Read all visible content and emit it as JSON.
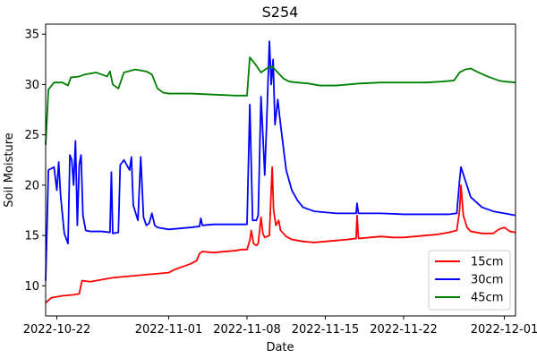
{
  "chart_data": {
    "type": "line",
    "title": "S254",
    "xlabel": "Date",
    "ylabel": "Soil Moisture",
    "xlim": [
      "2022-10-21",
      "2022-12-02"
    ],
    "ylim": [
      7,
      36
    ],
    "x_ticks": [
      "2022-10-22",
      "2022-11-01",
      "2022-11-08",
      "2022-11-15",
      "2022-11-22",
      "2022-12-01"
    ],
    "y_ticks": [
      10,
      15,
      20,
      25,
      30,
      35
    ],
    "legend_position": "lower-right",
    "grid": false,
    "series": [
      {
        "name": "15cm",
        "color": "#ff0000",
        "points": [
          [
            "2022-10-21 00:00",
            8.3
          ],
          [
            "2022-10-21 12:00",
            8.8
          ],
          [
            "2022-10-22 12:00",
            9.0
          ],
          [
            "2022-10-23 12:00",
            9.1
          ],
          [
            "2022-10-24 00:00",
            9.2
          ],
          [
            "2022-10-24 06:00",
            10.5
          ],
          [
            "2022-10-25 00:00",
            10.4
          ],
          [
            "2022-10-26 00:00",
            10.6
          ],
          [
            "2022-10-27 00:00",
            10.8
          ],
          [
            "2022-10-28 00:00",
            10.9
          ],
          [
            "2022-10-29 00:00",
            11.0
          ],
          [
            "2022-10-30 00:00",
            11.1
          ],
          [
            "2022-10-31 00:00",
            11.2
          ],
          [
            "2022-11-01 00:00",
            11.3
          ],
          [
            "2022-11-01 12:00",
            11.6
          ],
          [
            "2022-11-02 00:00",
            11.8
          ],
          [
            "2022-11-02 12:00",
            12.0
          ],
          [
            "2022-11-03 00:00",
            12.2
          ],
          [
            "2022-11-03 12:00",
            12.5
          ],
          [
            "2022-11-03 18:00",
            13.2
          ],
          [
            "2022-11-04 00:00",
            13.4
          ],
          [
            "2022-11-05 00:00",
            13.3
          ],
          [
            "2022-11-06 00:00",
            13.4
          ],
          [
            "2022-11-07 00:00",
            13.5
          ],
          [
            "2022-11-07 12:00",
            13.6
          ],
          [
            "2022-11-08 00:00",
            13.6
          ],
          [
            "2022-11-08 06:00",
            14.5
          ],
          [
            "2022-11-08 09:00",
            15.5
          ],
          [
            "2022-11-08 14:00",
            14.2
          ],
          [
            "2022-11-08 20:00",
            14.0
          ],
          [
            "2022-11-09 00:00",
            14.2
          ],
          [
            "2022-11-09 06:00",
            16.8
          ],
          [
            "2022-11-09 10:00",
            15.2
          ],
          [
            "2022-11-09 14:00",
            14.8
          ],
          [
            "2022-11-10 00:00",
            15.0
          ],
          [
            "2022-11-10 03:00",
            18.5
          ],
          [
            "2022-11-10 06:00",
            21.8
          ],
          [
            "2022-11-10 09:00",
            17.5
          ],
          [
            "2022-11-10 14:00",
            16.0
          ],
          [
            "2022-11-10 20:00",
            16.5
          ],
          [
            "2022-11-11 00:00",
            15.5
          ],
          [
            "2022-11-11 12:00",
            14.9
          ],
          [
            "2022-11-12 00:00",
            14.6
          ],
          [
            "2022-11-13 00:00",
            14.4
          ],
          [
            "2022-11-14 00:00",
            14.3
          ],
          [
            "2022-11-15 00:00",
            14.4
          ],
          [
            "2022-11-16 00:00",
            14.5
          ],
          [
            "2022-11-17 00:00",
            14.6
          ],
          [
            "2022-11-17 18:00",
            14.7
          ],
          [
            "2022-11-17 20:00",
            17.0
          ],
          [
            "2022-11-17 23:00",
            14.8
          ],
          [
            "2022-11-18 00:00",
            14.7
          ],
          [
            "2022-11-19 00:00",
            14.8
          ],
          [
            "2022-11-20 00:00",
            14.9
          ],
          [
            "2022-11-21 00:00",
            14.8
          ],
          [
            "2022-11-22 00:00",
            14.8
          ],
          [
            "2022-11-23 00:00",
            14.9
          ],
          [
            "2022-11-24 00:00",
            15.0
          ],
          [
            "2022-11-25 00:00",
            15.1
          ],
          [
            "2022-11-26 00:00",
            15.3
          ],
          [
            "2022-11-26 18:00",
            15.5
          ],
          [
            "2022-11-27 00:00",
            17.5
          ],
          [
            "2022-11-27 03:00",
            20.0
          ],
          [
            "2022-11-27 08:00",
            17.0
          ],
          [
            "2022-11-27 16:00",
            15.8
          ],
          [
            "2022-11-28 00:00",
            15.4
          ],
          [
            "2022-11-29 00:00",
            15.2
          ],
          [
            "2022-11-30 00:00",
            15.2
          ],
          [
            "2022-11-30 12:00",
            15.6
          ],
          [
            "2022-12-01 00:00",
            15.8
          ],
          [
            "2022-12-01 12:00",
            15.4
          ],
          [
            "2022-12-02 00:00",
            15.3
          ]
        ]
      },
      {
        "name": "30cm",
        "color": "#0000ff",
        "points": [
          [
            "2022-10-21 00:00",
            10.5
          ],
          [
            "2022-10-21 06:00",
            21.5
          ],
          [
            "2022-10-21 18:00",
            21.8
          ],
          [
            "2022-10-22 00:00",
            19.5
          ],
          [
            "2022-10-22 04:00",
            22.3
          ],
          [
            "2022-10-22 08:00",
            19.0
          ],
          [
            "2022-10-22 16:00",
            15.2
          ],
          [
            "2022-10-23 00:00",
            14.2
          ],
          [
            "2022-10-23 04:00",
            23.0
          ],
          [
            "2022-10-23 08:00",
            22.5
          ],
          [
            "2022-10-23 12:00",
            20.0
          ],
          [
            "2022-10-23 16:00",
            24.4
          ],
          [
            "2022-10-23 20:00",
            16.0
          ],
          [
            "2022-10-24 00:00",
            22.0
          ],
          [
            "2022-10-24 04:00",
            23.0
          ],
          [
            "2022-10-24 08:00",
            17.0
          ],
          [
            "2022-10-24 14:00",
            15.5
          ],
          [
            "2022-10-25 00:00",
            15.4
          ],
          [
            "2022-10-26 00:00",
            15.4
          ],
          [
            "2022-10-26 18:00",
            15.3
          ],
          [
            "2022-10-26 21:00",
            21.3
          ],
          [
            "2022-10-27 00:00",
            15.2
          ],
          [
            "2022-10-27 12:00",
            15.3
          ],
          [
            "2022-10-27 16:00",
            22.0
          ],
          [
            "2022-10-28 00:00",
            22.5
          ],
          [
            "2022-10-28 12:00",
            21.5
          ],
          [
            "2022-10-28 16:00",
            22.8
          ],
          [
            "2022-10-28 20:00",
            18.0
          ],
          [
            "2022-10-29 06:00",
            16.5
          ],
          [
            "2022-10-29 12:00",
            22.8
          ],
          [
            "2022-10-29 18:00",
            16.8
          ],
          [
            "2022-10-30 00:00",
            16.0
          ],
          [
            "2022-10-30 06:00",
            16.2
          ],
          [
            "2022-10-30 12:00",
            17.2
          ],
          [
            "2022-10-30 18:00",
            16.0
          ],
          [
            "2022-10-31 00:00",
            15.8
          ],
          [
            "2022-11-01 00:00",
            15.6
          ],
          [
            "2022-11-02 00:00",
            15.7
          ],
          [
            "2022-11-03 00:00",
            15.8
          ],
          [
            "2022-11-03 18:00",
            15.9
          ],
          [
            "2022-11-03 21:00",
            16.7
          ],
          [
            "2022-11-04 00:00",
            16.0
          ],
          [
            "2022-11-05 00:00",
            16.1
          ],
          [
            "2022-11-06 00:00",
            16.1
          ],
          [
            "2022-11-07 00:00",
            16.1
          ],
          [
            "2022-11-08 00:00",
            16.1
          ],
          [
            "2022-11-08 06:00",
            28.0
          ],
          [
            "2022-11-08 12:00",
            16.5
          ],
          [
            "2022-11-08 20:00",
            16.5
          ],
          [
            "2022-11-09 00:00",
            17.0
          ],
          [
            "2022-11-09 06:00",
            28.8
          ],
          [
            "2022-11-09 10:00",
            25.0
          ],
          [
            "2022-11-09 14:00",
            21.0
          ],
          [
            "2022-11-09 18:00",
            26.0
          ],
          [
            "2022-11-10 00:00",
            34.3
          ],
          [
            "2022-11-10 04:00",
            30.0
          ],
          [
            "2022-11-10 08:00",
            32.5
          ],
          [
            "2022-11-10 12:00",
            26.0
          ],
          [
            "2022-11-10 18:00",
            28.5
          ],
          [
            "2022-11-11 00:00",
            26.0
          ],
          [
            "2022-11-11 12:00",
            21.5
          ],
          [
            "2022-11-12 00:00",
            19.5
          ],
          [
            "2022-11-12 12:00",
            18.5
          ],
          [
            "2022-11-13 00:00",
            17.8
          ],
          [
            "2022-11-14 00:00",
            17.4
          ],
          [
            "2022-11-15 00:00",
            17.3
          ],
          [
            "2022-11-16 00:00",
            17.2
          ],
          [
            "2022-11-17 00:00",
            17.2
          ],
          [
            "2022-11-17 18:00",
            17.2
          ],
          [
            "2022-11-17 20:00",
            18.2
          ],
          [
            "2022-11-17 23:00",
            17.2
          ],
          [
            "2022-11-18 00:00",
            17.2
          ],
          [
            "2022-11-20 00:00",
            17.2
          ],
          [
            "2022-11-22 00:00",
            17.1
          ],
          [
            "2022-11-24 00:00",
            17.1
          ],
          [
            "2022-11-26 00:00",
            17.1
          ],
          [
            "2022-11-26 18:00",
            17.2
          ],
          [
            "2022-11-27 00:00",
            20.5
          ],
          [
            "2022-11-27 03:00",
            21.8
          ],
          [
            "2022-11-27 12:00",
            20.5
          ],
          [
            "2022-11-28 00:00",
            18.8
          ],
          [
            "2022-11-29 00:00",
            17.8
          ],
          [
            "2022-11-30 00:00",
            17.4
          ],
          [
            "2022-12-01 00:00",
            17.2
          ],
          [
            "2022-12-02 00:00",
            17.0
          ]
        ]
      },
      {
        "name": "45cm",
        "color": "#008000",
        "points": [
          [
            "2022-10-21 00:00",
            24.0
          ],
          [
            "2022-10-21 06:00",
            29.5
          ],
          [
            "2022-10-21 18:00",
            30.2
          ],
          [
            "2022-10-22 12:00",
            30.2
          ],
          [
            "2022-10-23 00:00",
            29.9
          ],
          [
            "2022-10-23 06:00",
            30.7
          ],
          [
            "2022-10-24 00:00",
            30.8
          ],
          [
            "2022-10-24 12:00",
            31.0
          ],
          [
            "2022-10-25 12:00",
            31.2
          ],
          [
            "2022-10-26 00:00",
            31.0
          ],
          [
            "2022-10-26 12:00",
            30.8
          ],
          [
            "2022-10-26 18:00",
            31.3
          ],
          [
            "2022-10-27 00:00",
            30.0
          ],
          [
            "2022-10-27 12:00",
            29.6
          ],
          [
            "2022-10-28 00:00",
            31.2
          ],
          [
            "2022-10-29 00:00",
            31.5
          ],
          [
            "2022-10-30 00:00",
            31.3
          ],
          [
            "2022-10-30 12:00",
            31.0
          ],
          [
            "2022-10-31 00:00",
            29.6
          ],
          [
            "2022-10-31 12:00",
            29.2
          ],
          [
            "2022-11-01 00:00",
            29.1
          ],
          [
            "2022-11-03 00:00",
            29.1
          ],
          [
            "2022-11-05 00:00",
            29.0
          ],
          [
            "2022-11-07 00:00",
            28.9
          ],
          [
            "2022-11-08 00:00",
            28.9
          ],
          [
            "2022-11-08 06:00",
            32.7
          ],
          [
            "2022-11-08 18:00",
            32.0
          ],
          [
            "2022-11-09 06:00",
            31.2
          ],
          [
            "2022-11-09 18:00",
            31.6
          ],
          [
            "2022-11-10 06:00",
            31.8
          ],
          [
            "2022-11-10 18:00",
            31.2
          ],
          [
            "2022-11-11 06:00",
            30.6
          ],
          [
            "2022-11-11 18:00",
            30.3
          ],
          [
            "2022-11-12 12:00",
            30.2
          ],
          [
            "2022-11-13 12:00",
            30.1
          ],
          [
            "2022-11-14 12:00",
            29.9
          ],
          [
            "2022-11-16 00:00",
            29.9
          ],
          [
            "2022-11-17 00:00",
            30.0
          ],
          [
            "2022-11-18 00:00",
            30.1
          ],
          [
            "2022-11-20 00:00",
            30.2
          ],
          [
            "2022-11-22 00:00",
            30.2
          ],
          [
            "2022-11-24 00:00",
            30.2
          ],
          [
            "2022-11-25 12:00",
            30.3
          ],
          [
            "2022-11-26 12:00",
            30.4
          ],
          [
            "2022-11-27 00:00",
            31.2
          ],
          [
            "2022-11-27 12:00",
            31.5
          ],
          [
            "2022-11-28 00:00",
            31.6
          ],
          [
            "2022-11-28 12:00",
            31.3
          ],
          [
            "2022-11-29 12:00",
            30.8
          ],
          [
            "2022-11-30 12:00",
            30.4
          ],
          [
            "2022-12-01 00:00",
            30.3
          ],
          [
            "2022-12-02 00:00",
            30.2
          ]
        ]
      }
    ]
  }
}
